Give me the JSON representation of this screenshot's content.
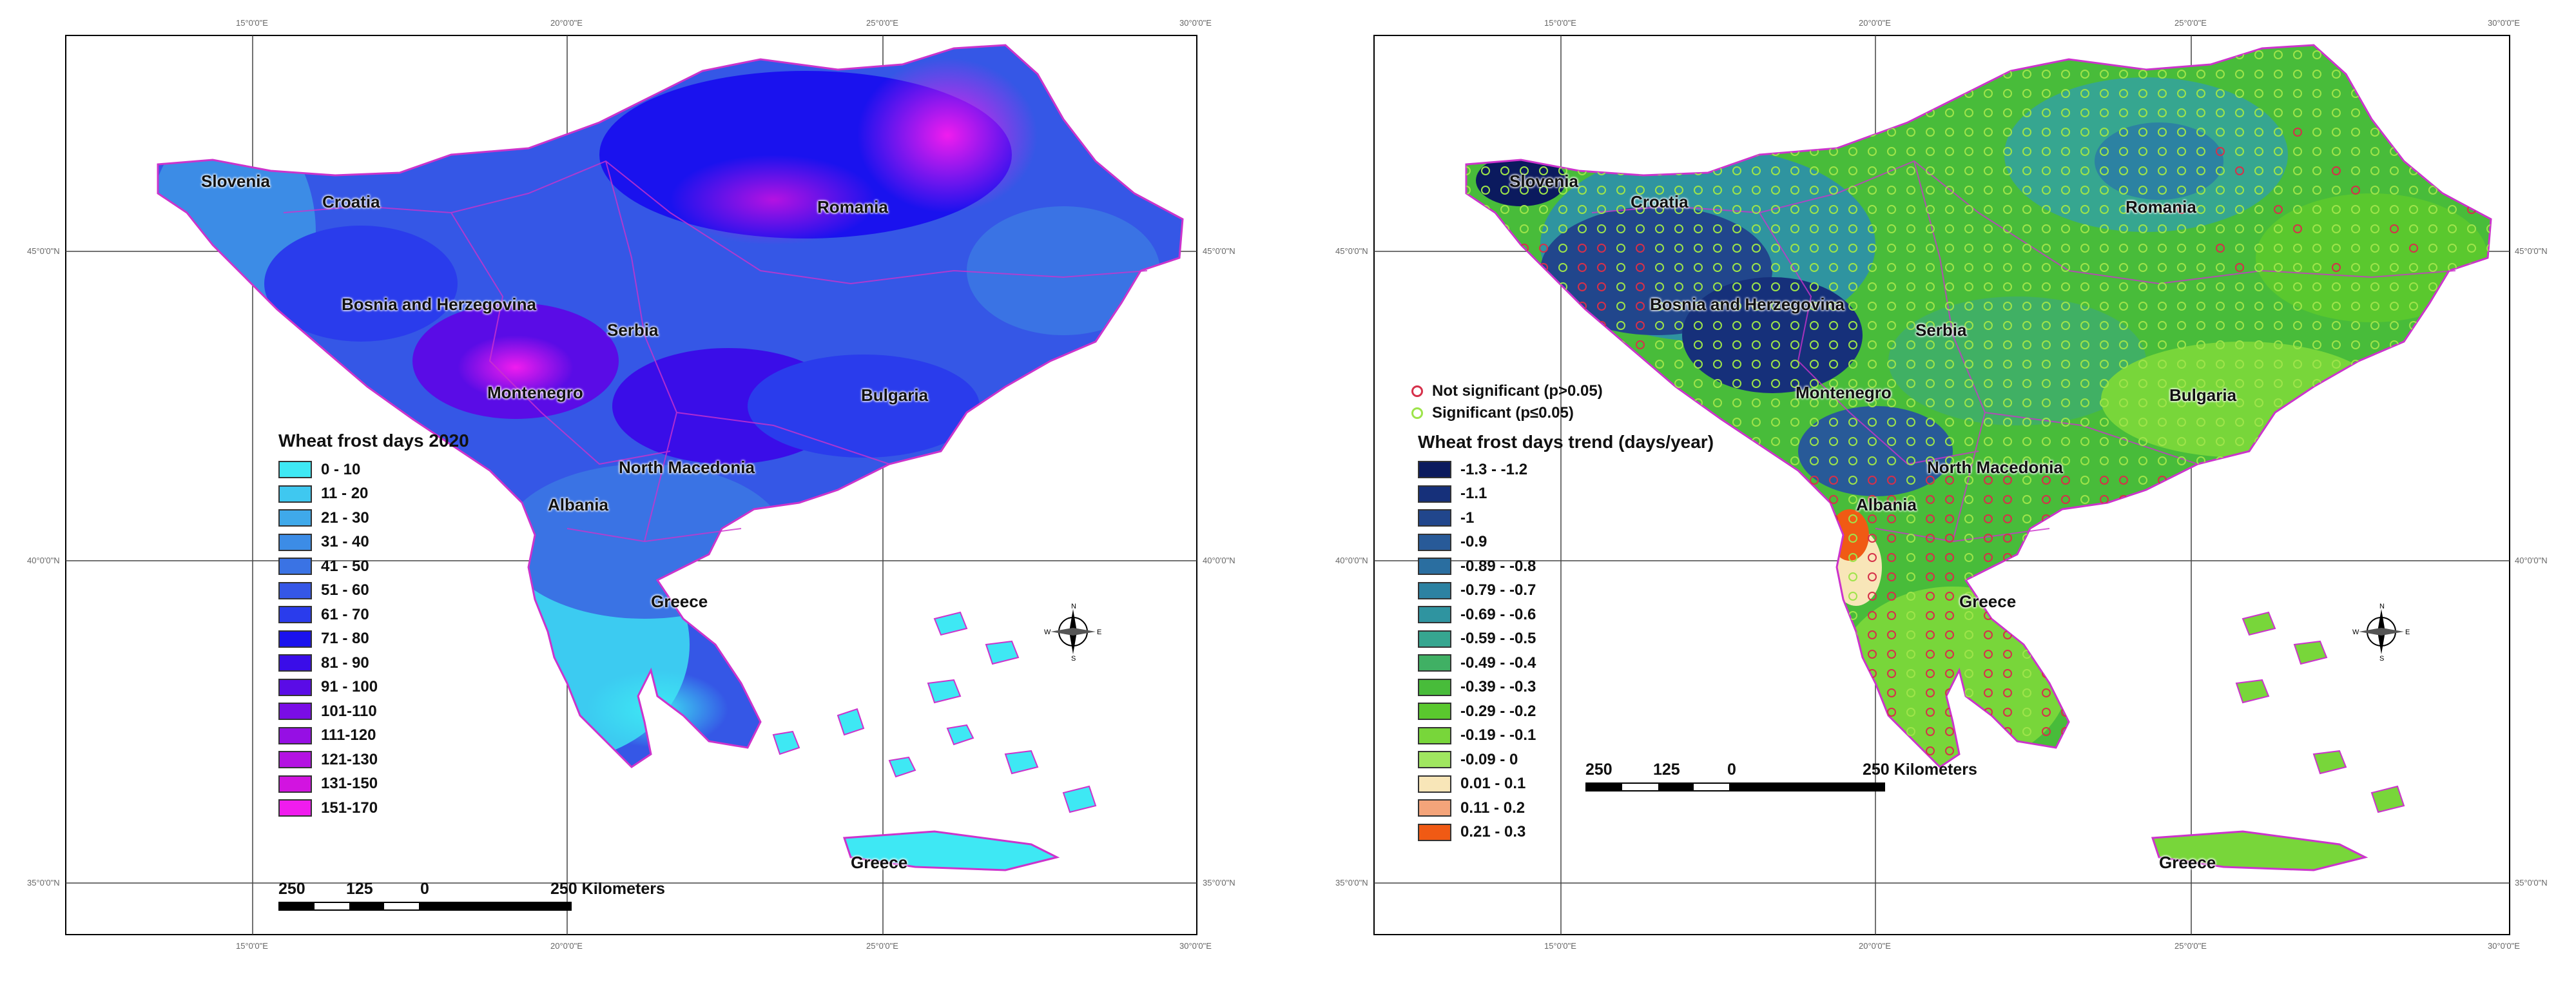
{
  "left_map": {
    "legend_title": "Wheat frost days 2020",
    "legend": [
      {
        "label": "0 - 10",
        "color": "#3ee8f4"
      },
      {
        "label": "11 - 20",
        "color": "#3fc8f0"
      },
      {
        "label": "21 - 30",
        "color": "#3fa9ea"
      },
      {
        "label": "31 - 40",
        "color": "#3c8ce6"
      },
      {
        "label": "41 - 50",
        "color": "#3a73e4"
      },
      {
        "label": "51 - 60",
        "color": "#3557e6"
      },
      {
        "label": "61 - 70",
        "color": "#2a3cec"
      },
      {
        "label": "71 - 80",
        "color": "#1a12ee"
      },
      {
        "label": "81 - 90",
        "color": "#3a0de8"
      },
      {
        "label": "91 - 100",
        "color": "#5a0ce6"
      },
      {
        "label": "101-110",
        "color": "#7a0de6"
      },
      {
        "label": "111-120",
        "color": "#960fe4"
      },
      {
        "label": "121-130",
        "color": "#b412e2"
      },
      {
        "label": "131-150",
        "color": "#d214e0"
      },
      {
        "label": "151-170",
        "color": "#f01cee"
      }
    ],
    "countries": [
      "Slovenia",
      "Croatia",
      "Romania",
      "Bosnia and Herzegovina",
      "Serbia",
      "Montenegro",
      "Bulgaria",
      "North Macedonia",
      "Albania",
      "Greece",
      "Greece"
    ],
    "scale": {
      "labels": [
        "250",
        "125",
        "0",
        "250 Kilometers"
      ]
    }
  },
  "right_map": {
    "legend_title": "Wheat frost days trend (days/year)",
    "significance": [
      {
        "label": "Not significant (p>0.05)",
        "color": "#d6304a"
      },
      {
        "label": "Significant (p≤0.05)",
        "color": "#9ee44a"
      }
    ],
    "legend": [
      {
        "label": "-1.3 - -1.2",
        "color": "#0b1a5e"
      },
      {
        "label": "-1.1",
        "color": "#16307a"
      },
      {
        "label": "-1",
        "color": "#21468c"
      },
      {
        "label": "-0.9",
        "color": "#285a98"
      },
      {
        "label": "-0.89 - -0.8",
        "color": "#2a6ea0"
      },
      {
        "label": "-0.79 - -0.7",
        "color": "#2c82a2"
      },
      {
        "label": "-0.69 - -0.6",
        "color": "#2f94a0"
      },
      {
        "label": "-0.59 - -0.5",
        "color": "#36a690"
      },
      {
        "label": "-0.49 - -0.4",
        "color": "#40b064"
      },
      {
        "label": "-0.39 - -0.3",
        "color": "#48bc3a"
      },
      {
        "label": "-0.29 - -0.2",
        "color": "#5ac82e"
      },
      {
        "label": "-0.19 - -0.1",
        "color": "#78d63a"
      },
      {
        "label": "-0.09 - 0",
        "color": "#a0e660"
      },
      {
        "label": "0.01 - 0.1",
        "color": "#f8e6b8"
      },
      {
        "label": "0.11 - 0.2",
        "color": "#f4a47a"
      },
      {
        "label": "0.21 - 0.3",
        "color": "#f05a14"
      }
    ],
    "countries": [
      "Slovenia",
      "Croatia",
      "Romania",
      "Bosnia and Herzegovina",
      "Serbia",
      "Montenegro",
      "Bulgaria",
      "North Macedonia",
      "Albania",
      "Greece",
      "Greece"
    ],
    "scale": {
      "labels": [
        "250",
        "125",
        "0",
        "250 Kilometers"
      ]
    }
  },
  "compass": {
    "n": "N",
    "s": "S",
    "e": "E",
    "w": "W"
  },
  "graticule_lon_labels": [
    "15°0'0\"E",
    "20°0'0\"E",
    "25°0'0\"E",
    "30°0'0\"E"
  ],
  "graticule_lat_labels": [
    "45°0'0\"N",
    "40°0'0\"N",
    "35°0'0\"N"
  ],
  "colors": {
    "border": "#cc33cc",
    "frame": "#000000",
    "grid": "#444444"
  }
}
